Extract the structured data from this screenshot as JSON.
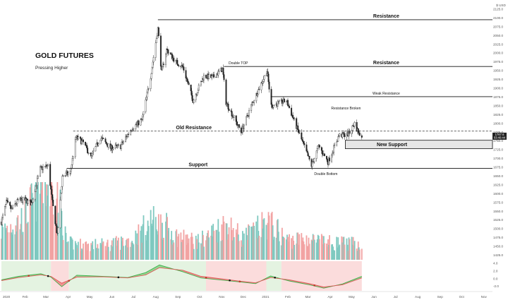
{
  "chart_data": {
    "type": "candlestick",
    "title": "GOLD FUTURES",
    "subtitle": "Pressing Higher",
    "x_ticks": [
      "2020",
      "Feb",
      "Mar",
      "Apr",
      "May",
      "Jun",
      "Jul",
      "Aug",
      "Sep",
      "Oct",
      "Nov",
      "Dec",
      "2021",
      "Feb",
      "Mar",
      "Apr",
      "May",
      "Jun",
      "Jul",
      "Aug",
      "Sep",
      "Oct",
      "Nov"
    ],
    "x_start": "2020-01-01",
    "x_end": "2021-11-15",
    "price_axis": {
      "top_label": "$ USD",
      "ticks": [
        2125,
        2100,
        2075,
        2050,
        2025,
        2000,
        1975,
        1950,
        1925,
        1900,
        1875,
        1850,
        1825,
        1800,
        1775,
        1750,
        1725,
        1700,
        1675,
        1650,
        1625,
        1600,
        1575,
        1550,
        1525,
        1500,
        1475,
        1450,
        1425
      ],
      "range": [
        1412,
        2135
      ]
    },
    "last_price": {
      "value": "1767.6",
      "countdown": "03:40:44",
      "color": "#222222"
    },
    "osc_axis": {
      "ticks": [
        4.0,
        2.0,
        0.0,
        -2.0
      ],
      "range": [
        -3.2,
        4.6
      ]
    },
    "price_path": [
      [
        "2020-01-01",
        1520
      ],
      [
        "2020-01-08",
        1575
      ],
      [
        "2020-01-15",
        1555
      ],
      [
        "2020-01-24",
        1580
      ],
      [
        "2020-02-03",
        1582
      ],
      [
        "2020-02-12",
        1572
      ],
      [
        "2020-02-24",
        1670
      ],
      [
        "2020-03-06",
        1680
      ],
      [
        "2020-03-12",
        1575
      ],
      [
        "2020-03-19",
        1480
      ],
      [
        "2020-03-26",
        1650
      ],
      [
        "2020-04-06",
        1660
      ],
      [
        "2020-04-14",
        1760
      ],
      [
        "2020-04-24",
        1745
      ],
      [
        "2020-05-05",
        1705
      ],
      [
        "2020-05-18",
        1760
      ],
      [
        "2020-06-01",
        1730
      ],
      [
        "2020-06-15",
        1735
      ],
      [
        "2020-06-30",
        1785
      ],
      [
        "2020-07-15",
        1810
      ],
      [
        "2020-07-27",
        1935
      ],
      [
        "2020-08-06",
        2070
      ],
      [
        "2020-08-11",
        1945
      ],
      [
        "2020-08-18",
        2010
      ],
      [
        "2020-08-31",
        1975
      ],
      [
        "2020-09-10",
        1960
      ],
      [
        "2020-09-24",
        1865
      ],
      [
        "2020-10-09",
        1935
      ],
      [
        "2020-10-21",
        1930
      ],
      [
        "2020-11-04",
        1955
      ],
      [
        "2020-11-09",
        1860
      ],
      [
        "2020-11-30",
        1775
      ],
      [
        "2020-12-15",
        1855
      ],
      [
        "2021-01-05",
        1950
      ],
      [
        "2021-01-11",
        1850
      ],
      [
        "2021-02-01",
        1865
      ],
      [
        "2021-02-18",
        1775
      ],
      [
        "2021-03-08",
        1680
      ],
      [
        "2021-03-18",
        1735
      ],
      [
        "2021-03-31",
        1690
      ],
      [
        "2021-04-15",
        1765
      ],
      [
        "2021-04-29",
        1770
      ],
      [
        "2021-05-07",
        1800
      ],
      [
        "2021-05-13",
        1770
      ],
      [
        "2021-05-17",
        1767.6
      ]
    ],
    "volume_path": [
      [
        "2020-01-01",
        55
      ],
      [
        "2020-02-01",
        80
      ],
      [
        "2020-02-28",
        150
      ],
      [
        "2020-03-20",
        120
      ],
      [
        "2020-04-01",
        32
      ],
      [
        "2020-05-01",
        28
      ],
      [
        "2020-06-01",
        30
      ],
      [
        "2020-07-01",
        38
      ],
      [
        "2020-07-28",
        75
      ],
      [
        "2020-08-12",
        70
      ],
      [
        "2020-09-01",
        45
      ],
      [
        "2020-10-01",
        35
      ],
      [
        "2020-11-10",
        70
      ],
      [
        "2020-12-01",
        42
      ],
      [
        "2021-01-08",
        72
      ],
      [
        "2021-02-01",
        38
      ],
      [
        "2021-03-01",
        40
      ],
      [
        "2021-04-01",
        33
      ],
      [
        "2021-05-17",
        30
      ]
    ],
    "volume_scale": {
      "max": 150
    },
    "oscillator": {
      "fast": [
        [
          "2020-01-01",
          -0.3
        ],
        [
          "2020-01-25",
          0.6
        ],
        [
          "2020-02-25",
          1.3
        ],
        [
          "2020-03-10",
          0.4
        ],
        [
          "2020-03-25",
          -2.1
        ],
        [
          "2020-04-15",
          0.9
        ],
        [
          "2020-05-20",
          0.6
        ],
        [
          "2020-06-25",
          0.3
        ],
        [
          "2020-07-20",
          1.6
        ],
        [
          "2020-08-08",
          3.6
        ],
        [
          "2020-09-10",
          1.8
        ],
        [
          "2020-10-05",
          0.2
        ],
        [
          "2020-11-05",
          -0.4
        ],
        [
          "2020-11-25",
          -0.8
        ],
        [
          "2020-12-20",
          -1.3
        ],
        [
          "2021-01-10",
          0.7
        ],
        [
          "2021-02-05",
          -0.6
        ],
        [
          "2021-03-05",
          -1.6
        ],
        [
          "2021-03-25",
          -2.5
        ],
        [
          "2021-04-20",
          -1.4
        ],
        [
          "2021-05-17",
          0.6
        ]
      ],
      "slow": [
        [
          "2020-01-01",
          -0.5
        ],
        [
          "2020-01-25",
          0.3
        ],
        [
          "2020-02-25",
          1.0
        ],
        [
          "2020-03-10",
          0.6
        ],
        [
          "2020-03-25",
          -1.2
        ],
        [
          "2020-04-15",
          0.4
        ],
        [
          "2020-05-20",
          0.5
        ],
        [
          "2020-06-25",
          0.2
        ],
        [
          "2020-07-20",
          1.0
        ],
        [
          "2020-08-08",
          2.9
        ],
        [
          "2020-09-10",
          2.2
        ],
        [
          "2020-10-05",
          0.6
        ],
        [
          "2020-11-05",
          -0.1
        ],
        [
          "2020-11-25",
          -0.6
        ],
        [
          "2020-12-20",
          -1.1
        ],
        [
          "2021-01-10",
          0.3
        ],
        [
          "2021-02-05",
          -0.3
        ],
        [
          "2021-03-05",
          -1.3
        ],
        [
          "2021-03-25",
          -2.2
        ],
        [
          "2021-04-20",
          -1.6
        ],
        [
          "2021-05-17",
          0.2
        ]
      ],
      "cross_dates": [
        "2020-02-08",
        "2020-03-06",
        "2020-04-04",
        "2020-06-12",
        "2020-10-12",
        "2020-11-14",
        "2020-11-28",
        "2021-01-16",
        "2021-03-12"
      ],
      "bands": [
        {
          "from": "2020-01-01",
          "to": "2020-03-10",
          "color": "#e4f3e1"
        },
        {
          "from": "2020-03-10",
          "to": "2020-04-04",
          "color": "#fbdcdc"
        },
        {
          "from": "2020-04-04",
          "to": "2020-10-12",
          "color": "#e4f3e1"
        },
        {
          "from": "2020-10-12",
          "to": "2021-01-04",
          "color": "#fbdcdc"
        },
        {
          "from": "2021-01-04",
          "to": "2021-01-25",
          "color": "#e4f3e1"
        },
        {
          "from": "2021-01-25",
          "to": "2021-05-17",
          "color": "#fbdcdc"
        }
      ]
    },
    "levels": [
      {
        "label": "Resistance",
        "price": 2095,
        "from": "2020-08-06",
        "to": "2021-11-15",
        "style": "solid",
        "label_date": "2021-06-20",
        "label_size": 7
      },
      {
        "label": "Double TOP",
        "price": 1962,
        "from": "2020-11-06",
        "to": "2021-01-06",
        "style": "solid",
        "label_date": "2020-11-26",
        "label_size": 5
      },
      {
        "label": "Resistance",
        "price": 1962,
        "from": "2021-01-06",
        "to": "2021-11-15",
        "style": "solid",
        "label_date": "2021-06-20",
        "label_size": 7
      },
      {
        "label": "Weak Resistance",
        "price": 1876,
        "from": "2021-01-10",
        "to": "2021-11-15",
        "style": "solid",
        "label_date": "2021-06-20",
        "label_size": 5
      },
      {
        "label": "Old Resistance",
        "price": 1778,
        "from": "2020-04-10",
        "to": "2021-11-15",
        "style": "dashed",
        "label_date": "2020-09-25",
        "label_size": 7
      },
      {
        "label": "Support",
        "price": 1672,
        "from": "2020-04-01",
        "to": "2021-11-15",
        "style": "solid",
        "label_date": "2020-10-01",
        "label_size": 7
      }
    ],
    "zones": [
      {
        "label": "New Support",
        "from_price": 1752,
        "to_price": 1728,
        "from": "2021-04-24",
        "to": "2021-11-15",
        "label_date": "2021-06-28"
      }
    ],
    "annotations": [
      {
        "text": "Resistance Broken",
        "date": "2021-04-25",
        "price": 1840,
        "size": 5
      },
      {
        "text": "Double Bottom",
        "date": "2021-03-28",
        "price": 1653,
        "size": 5
      }
    ]
  }
}
